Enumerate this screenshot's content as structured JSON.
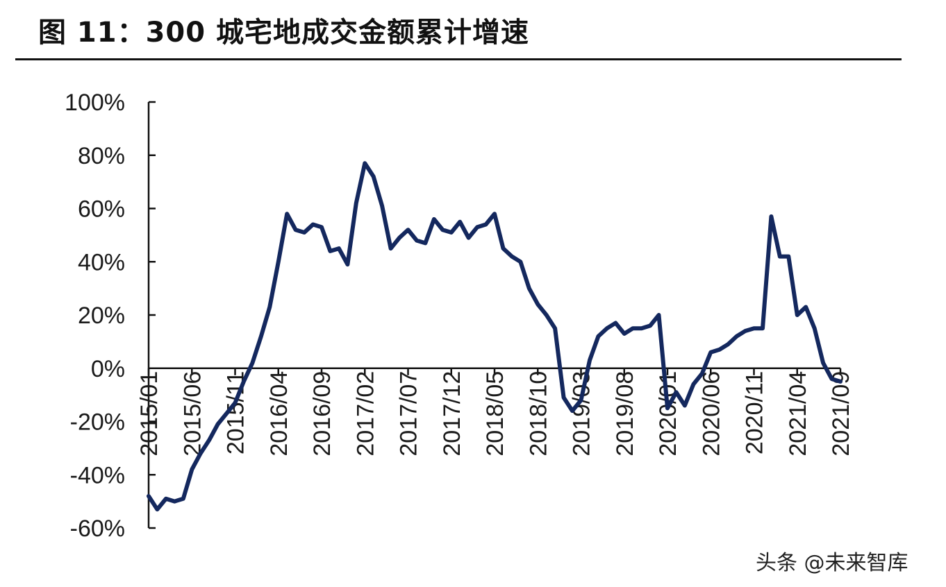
{
  "title": "图 11：300 城宅地成交金额累计增速",
  "watermark": "头条 @未来智库",
  "colors": {
    "series": "#14285e",
    "axis": "#111111"
  },
  "chart_data": {
    "type": "line",
    "title": "图 11：300 城宅地成交金额累计增速",
    "xlabel": "",
    "ylabel": "",
    "ylim": [
      -60,
      100
    ],
    "y_ticks": [
      "100%",
      "80%",
      "60%",
      "40%",
      "20%",
      "0%",
      "-20%",
      "-40%",
      "-60%"
    ],
    "y_tick_values": [
      100,
      80,
      60,
      40,
      20,
      0,
      -20,
      -40,
      -60
    ],
    "x_tick_labels": [
      "2015/01",
      "2015/06",
      "2015/11",
      "2016/04",
      "2016/09",
      "2017/02",
      "2017/07",
      "2017/12",
      "2018/05",
      "2018/10",
      "2019/03",
      "2019/08",
      "2020/01",
      "2020/06",
      "2020/11",
      "2021/04",
      "2021/09"
    ],
    "grid": false,
    "legend": "none",
    "series": [
      {
        "x": [
          "2015/01",
          "2015/02",
          "2015/03",
          "2015/04",
          "2015/05",
          "2015/06",
          "2015/07",
          "2015/08",
          "2015/09",
          "2015/10",
          "2015/11",
          "2015/12",
          "2016/01",
          "2016/02",
          "2016/03",
          "2016/04",
          "2016/05",
          "2016/06",
          "2016/07",
          "2016/08",
          "2016/09",
          "2016/10",
          "2016/11",
          "2016/12",
          "2017/01",
          "2017/02",
          "2017/03",
          "2017/04",
          "2017/05",
          "2017/06",
          "2017/07",
          "2017/08",
          "2017/09",
          "2017/10",
          "2017/11",
          "2017/12",
          "2018/01",
          "2018/02",
          "2018/03",
          "2018/04",
          "2018/05",
          "2018/06",
          "2018/07",
          "2018/08",
          "2018/09",
          "2018/10",
          "2018/11",
          "2018/12",
          "2019/01",
          "2019/02",
          "2019/03",
          "2019/04",
          "2019/05",
          "2019/06",
          "2019/07",
          "2019/08",
          "2019/09",
          "2019/10",
          "2019/11",
          "2019/12",
          "2020/01",
          "2020/02",
          "2020/03",
          "2020/04",
          "2020/05",
          "2020/06",
          "2020/07",
          "2020/08",
          "2020/09",
          "2020/10",
          "2020/11",
          "2020/12",
          "2021/01",
          "2021/02",
          "2021/03",
          "2021/04",
          "2021/05",
          "2021/06",
          "2021/07",
          "2021/08",
          "2021/09"
        ],
        "values": [
          -48,
          -53,
          -49,
          -50,
          -49,
          -38,
          -32,
          -27,
          -21,
          -17,
          -13,
          -5,
          2,
          12,
          23,
          40,
          58,
          52,
          51,
          54,
          53,
          44,
          45,
          39,
          62,
          77,
          72,
          61,
          45,
          49,
          52,
          48,
          47,
          56,
          52,
          51,
          55,
          49,
          53,
          54,
          58,
          45,
          42,
          40,
          30,
          24,
          20,
          15,
          -11,
          -16,
          -12,
          3,
          12,
          15,
          17,
          13,
          15,
          15,
          16,
          20,
          -15,
          -9,
          -14,
          -6,
          -2,
          6,
          7,
          9,
          12,
          14,
          15,
          15,
          57,
          42,
          42,
          20,
          23,
          15,
          2,
          -4,
          -5
        ]
      }
    ]
  }
}
